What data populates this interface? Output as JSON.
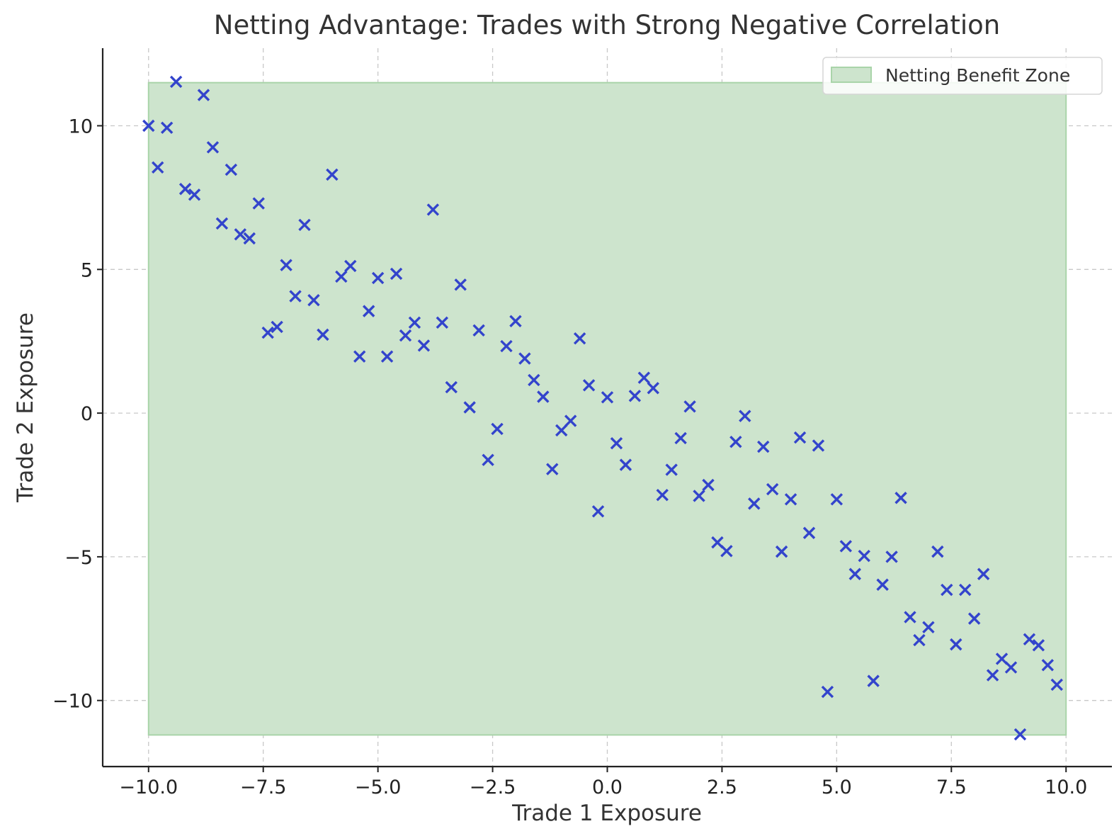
{
  "chart_data": {
    "type": "scatter",
    "title": "Netting Advantage: Trades with Strong Negative Correlation",
    "xlabel": "Trade 1 Exposure",
    "ylabel": "Trade 2 Exposure",
    "xlim": [
      -11,
      11
    ],
    "ylim": [
      -12.3,
      12.7
    ],
    "xticks": [
      -10,
      -7.5,
      -5,
      -2.5,
      0,
      2.5,
      5,
      7.5,
      10
    ],
    "xtick_labels": [
      "−10.0",
      "−7.5",
      "−5.0",
      "−2.5",
      "0.0",
      "2.5",
      "5.0",
      "7.5",
      "10.0"
    ],
    "yticks": [
      -10,
      -5,
      0,
      5,
      10
    ],
    "ytick_labels": [
      "−10",
      "−5",
      "0",
      "5",
      "10"
    ],
    "grid": true,
    "legend_position": "top-right",
    "zone": {
      "label": "Netting Benefit Zone",
      "x": [
        -10,
        10
      ],
      "y": [
        -11.2,
        11.5
      ],
      "fill_color": "#cde4cd",
      "edge_color": "#a9d4a9"
    },
    "marker_color": "#3344cc",
    "marker": "x",
    "points": [
      [
        -10.0,
        10.0
      ],
      [
        -9.8,
        8.55
      ],
      [
        -9.6,
        9.93
      ],
      [
        -9.4,
        11.53
      ],
      [
        -9.2,
        7.8
      ],
      [
        -9.0,
        7.6
      ],
      [
        -8.8,
        11.07
      ],
      [
        -8.6,
        9.25
      ],
      [
        -8.4,
        6.6
      ],
      [
        -8.2,
        8.47
      ],
      [
        -8.0,
        6.22
      ],
      [
        -7.8,
        6.08
      ],
      [
        -7.6,
        7.3
      ],
      [
        -7.4,
        2.8
      ],
      [
        -7.2,
        3.0
      ],
      [
        -7.0,
        5.15
      ],
      [
        -6.8,
        4.07
      ],
      [
        -6.6,
        6.55
      ],
      [
        -6.4,
        3.93
      ],
      [
        -6.2,
        2.73
      ],
      [
        -6.0,
        8.3
      ],
      [
        -5.8,
        4.75
      ],
      [
        -5.6,
        5.12
      ],
      [
        -5.4,
        1.97
      ],
      [
        -5.2,
        3.55
      ],
      [
        -5.0,
        4.7
      ],
      [
        -4.8,
        1.97
      ],
      [
        -4.6,
        4.85
      ],
      [
        -4.4,
        2.7
      ],
      [
        -4.2,
        3.15
      ],
      [
        -4.0,
        2.35
      ],
      [
        -3.8,
        7.08
      ],
      [
        -3.6,
        3.15
      ],
      [
        -3.4,
        0.9
      ],
      [
        -3.2,
        4.47
      ],
      [
        -3.0,
        0.2
      ],
      [
        -2.8,
        2.88
      ],
      [
        -2.6,
        -1.63
      ],
      [
        -2.4,
        -0.55
      ],
      [
        -2.2,
        2.33
      ],
      [
        -2.0,
        3.2
      ],
      [
        -1.8,
        1.9
      ],
      [
        -1.6,
        1.15
      ],
      [
        -1.4,
        0.57
      ],
      [
        -1.2,
        -1.95
      ],
      [
        -1.0,
        -0.6
      ],
      [
        -0.8,
        -0.27
      ],
      [
        -0.6,
        2.6
      ],
      [
        -0.4,
        0.97
      ],
      [
        -0.2,
        -3.42
      ],
      [
        0.0,
        0.55
      ],
      [
        0.2,
        -1.05
      ],
      [
        0.4,
        -1.8
      ],
      [
        0.6,
        0.6
      ],
      [
        0.8,
        1.23
      ],
      [
        1.0,
        0.87
      ],
      [
        1.2,
        -2.85
      ],
      [
        1.4,
        -1.97
      ],
      [
        1.6,
        -0.87
      ],
      [
        1.8,
        0.23
      ],
      [
        2.0,
        -2.88
      ],
      [
        2.2,
        -2.5
      ],
      [
        2.4,
        -4.5
      ],
      [
        2.6,
        -4.8
      ],
      [
        2.8,
        -1.0
      ],
      [
        3.0,
        -0.1
      ],
      [
        3.2,
        -3.15
      ],
      [
        3.4,
        -1.17
      ],
      [
        3.6,
        -2.65
      ],
      [
        3.8,
        -4.82
      ],
      [
        4.0,
        -3.0
      ],
      [
        4.2,
        -0.85
      ],
      [
        4.4,
        -4.17
      ],
      [
        4.6,
        -1.13
      ],
      [
        4.8,
        -9.7
      ],
      [
        5.0,
        -3.0
      ],
      [
        5.2,
        -4.63
      ],
      [
        5.4,
        -5.6
      ],
      [
        5.6,
        -4.97
      ],
      [
        5.8,
        -9.32
      ],
      [
        6.0,
        -5.97
      ],
      [
        6.2,
        -5.0
      ],
      [
        6.4,
        -2.95
      ],
      [
        6.6,
        -7.1
      ],
      [
        6.8,
        -7.9
      ],
      [
        7.0,
        -7.45
      ],
      [
        7.2,
        -4.82
      ],
      [
        7.4,
        -6.15
      ],
      [
        7.6,
        -8.05
      ],
      [
        7.8,
        -6.15
      ],
      [
        8.0,
        -7.15
      ],
      [
        8.2,
        -5.6
      ],
      [
        8.4,
        -9.12
      ],
      [
        8.6,
        -8.55
      ],
      [
        8.8,
        -8.85
      ],
      [
        9.0,
        -11.18
      ],
      [
        9.2,
        -7.87
      ],
      [
        9.4,
        -8.08
      ],
      [
        9.6,
        -8.77
      ],
      [
        9.8,
        -9.45
      ]
    ]
  }
}
